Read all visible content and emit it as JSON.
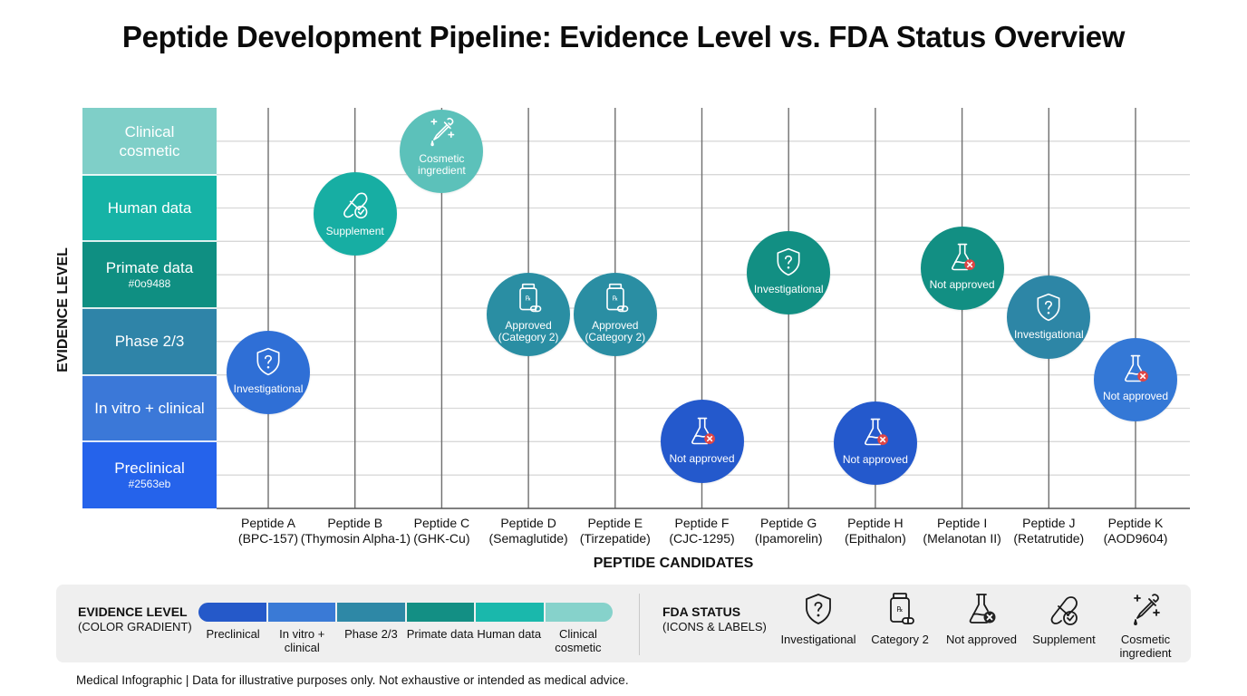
{
  "title": "Peptide Development Pipeline: Evidence Level vs. FDA Status Overview",
  "footer": "Medical Infographic | Data for illustrative purposes only. Not exhaustive or intended as medical advice.",
  "chart_data": {
    "type": "scatter",
    "title": "Peptide Development Pipeline: Evidence Level vs. FDA Status Overview",
    "xlabel": "PEPTIDE CANDIDATES",
    "ylabel": "EVIDENCE LEVEL",
    "grid": true,
    "y_categories": [
      {
        "label": "Preclinical",
        "hex": "#2563eb",
        "color": "#2563eb"
      },
      {
        "label": "In vitro + clinical",
        "hex": "",
        "color": "#3b78d8"
      },
      {
        "label": "Phase 2/3",
        "hex": "",
        "color": "#2f84a8"
      },
      {
        "label": "Primate data",
        "hex": "#0o9488",
        "color": "#0f8f82"
      },
      {
        "label": "Human data",
        "hex": "",
        "color": "#16b3a6"
      },
      {
        "label": "Clinical cosmetic",
        "hex": "",
        "color": "#7fcfc8"
      }
    ],
    "ylim": [
      0,
      6
    ],
    "categories": [
      {
        "name": "Peptide A",
        "compound": "(BPC-157)"
      },
      {
        "name": "Peptide B",
        "compound": "(Thymosin Alpha-1)"
      },
      {
        "name": "Peptide C",
        "compound": "(GHK-Cu)"
      },
      {
        "name": "Peptide D",
        "compound": "(Semaglutide)"
      },
      {
        "name": "Peptide E",
        "compound": "(Tirzepatide)"
      },
      {
        "name": "Peptide F",
        "compound": "(CJC-1295)"
      },
      {
        "name": "Peptide G",
        "compound": "(Ipamorelin)"
      },
      {
        "name": "Peptide H",
        "compound": "(Epithalon)"
      },
      {
        "name": "Peptide I",
        "compound": "(Melanotan II)"
      },
      {
        "name": "Peptide J",
        "compound": "(Retatrutide)"
      },
      {
        "name": "Peptide K",
        "compound": "(AOD9604)"
      }
    ],
    "points": [
      {
        "peptide": "Peptide A",
        "evidence": 2.04,
        "status": "investigational",
        "label": "Investigational",
        "color": "#2f6fd6"
      },
      {
        "peptide": "Peptide B",
        "evidence": 4.41,
        "status": "supplement",
        "label": "Supplement",
        "color": "#17aea3"
      },
      {
        "peptide": "Peptide C",
        "evidence": 5.35,
        "status": "cosmetic",
        "label": "Cosmetic ingredient",
        "color": "#5cc1ba"
      },
      {
        "peptide": "Peptide D",
        "evidence": 2.9,
        "status": "category2",
        "label": "Approved (Category 2)",
        "color": "#2a8ea3"
      },
      {
        "peptide": "Peptide E",
        "evidence": 2.9,
        "status": "category2",
        "label": "Approved (Category 2)",
        "color": "#2a8ea3"
      },
      {
        "peptide": "Peptide F",
        "evidence": 1.0,
        "status": "not_approved",
        "label": "Not approved",
        "color": "#2459cc"
      },
      {
        "peptide": "Peptide G",
        "evidence": 3.53,
        "status": "investigational",
        "label": "Investigational",
        "color": "#128f83"
      },
      {
        "peptide": "Peptide H",
        "evidence": 0.98,
        "status": "not_approved",
        "label": "Not approved",
        "color": "#2459cc"
      },
      {
        "peptide": "Peptide I",
        "evidence": 3.6,
        "status": "not_approved",
        "label": "Not approved",
        "color": "#128f83"
      },
      {
        "peptide": "Peptide J",
        "evidence": 2.86,
        "status": "investigational",
        "label": "Investigational",
        "color": "#2d86a6"
      },
      {
        "peptide": "Peptide K",
        "evidence": 1.93,
        "status": "not_approved",
        "label": "Not approved",
        "color": "#3478d6"
      }
    ]
  },
  "legend": {
    "evidence": {
      "title": "EVIDENCE LEVEL",
      "subtitle": "(COLOR GRADIENT)",
      "items": [
        {
          "label": "Preclinical",
          "color": "#2559c9"
        },
        {
          "label": "In vitro + clinical",
          "color": "#3a7ad6"
        },
        {
          "label": "Phase 2/3",
          "color": "#2e88a6"
        },
        {
          "label": "Primate data",
          "color": "#138f84"
        },
        {
          "label": "Human data",
          "color": "#1ab8ac"
        },
        {
          "label": "Clinical cosmetic",
          "color": "#86d2cb"
        }
      ]
    },
    "fda": {
      "title": "FDA STATUS",
      "subtitle": "(ICONS & LABELS)",
      "items": [
        {
          "icon": "shield-question-icon",
          "label": "Investigational"
        },
        {
          "icon": "pill-bottle-icon",
          "label": "Category 2"
        },
        {
          "icon": "flask-x-icon",
          "label": "Not approved"
        },
        {
          "icon": "capsule-check-icon",
          "label": "Supplement"
        },
        {
          "icon": "dropper-sparkle-icon",
          "label": "Cosmetic ingredient"
        }
      ]
    }
  }
}
